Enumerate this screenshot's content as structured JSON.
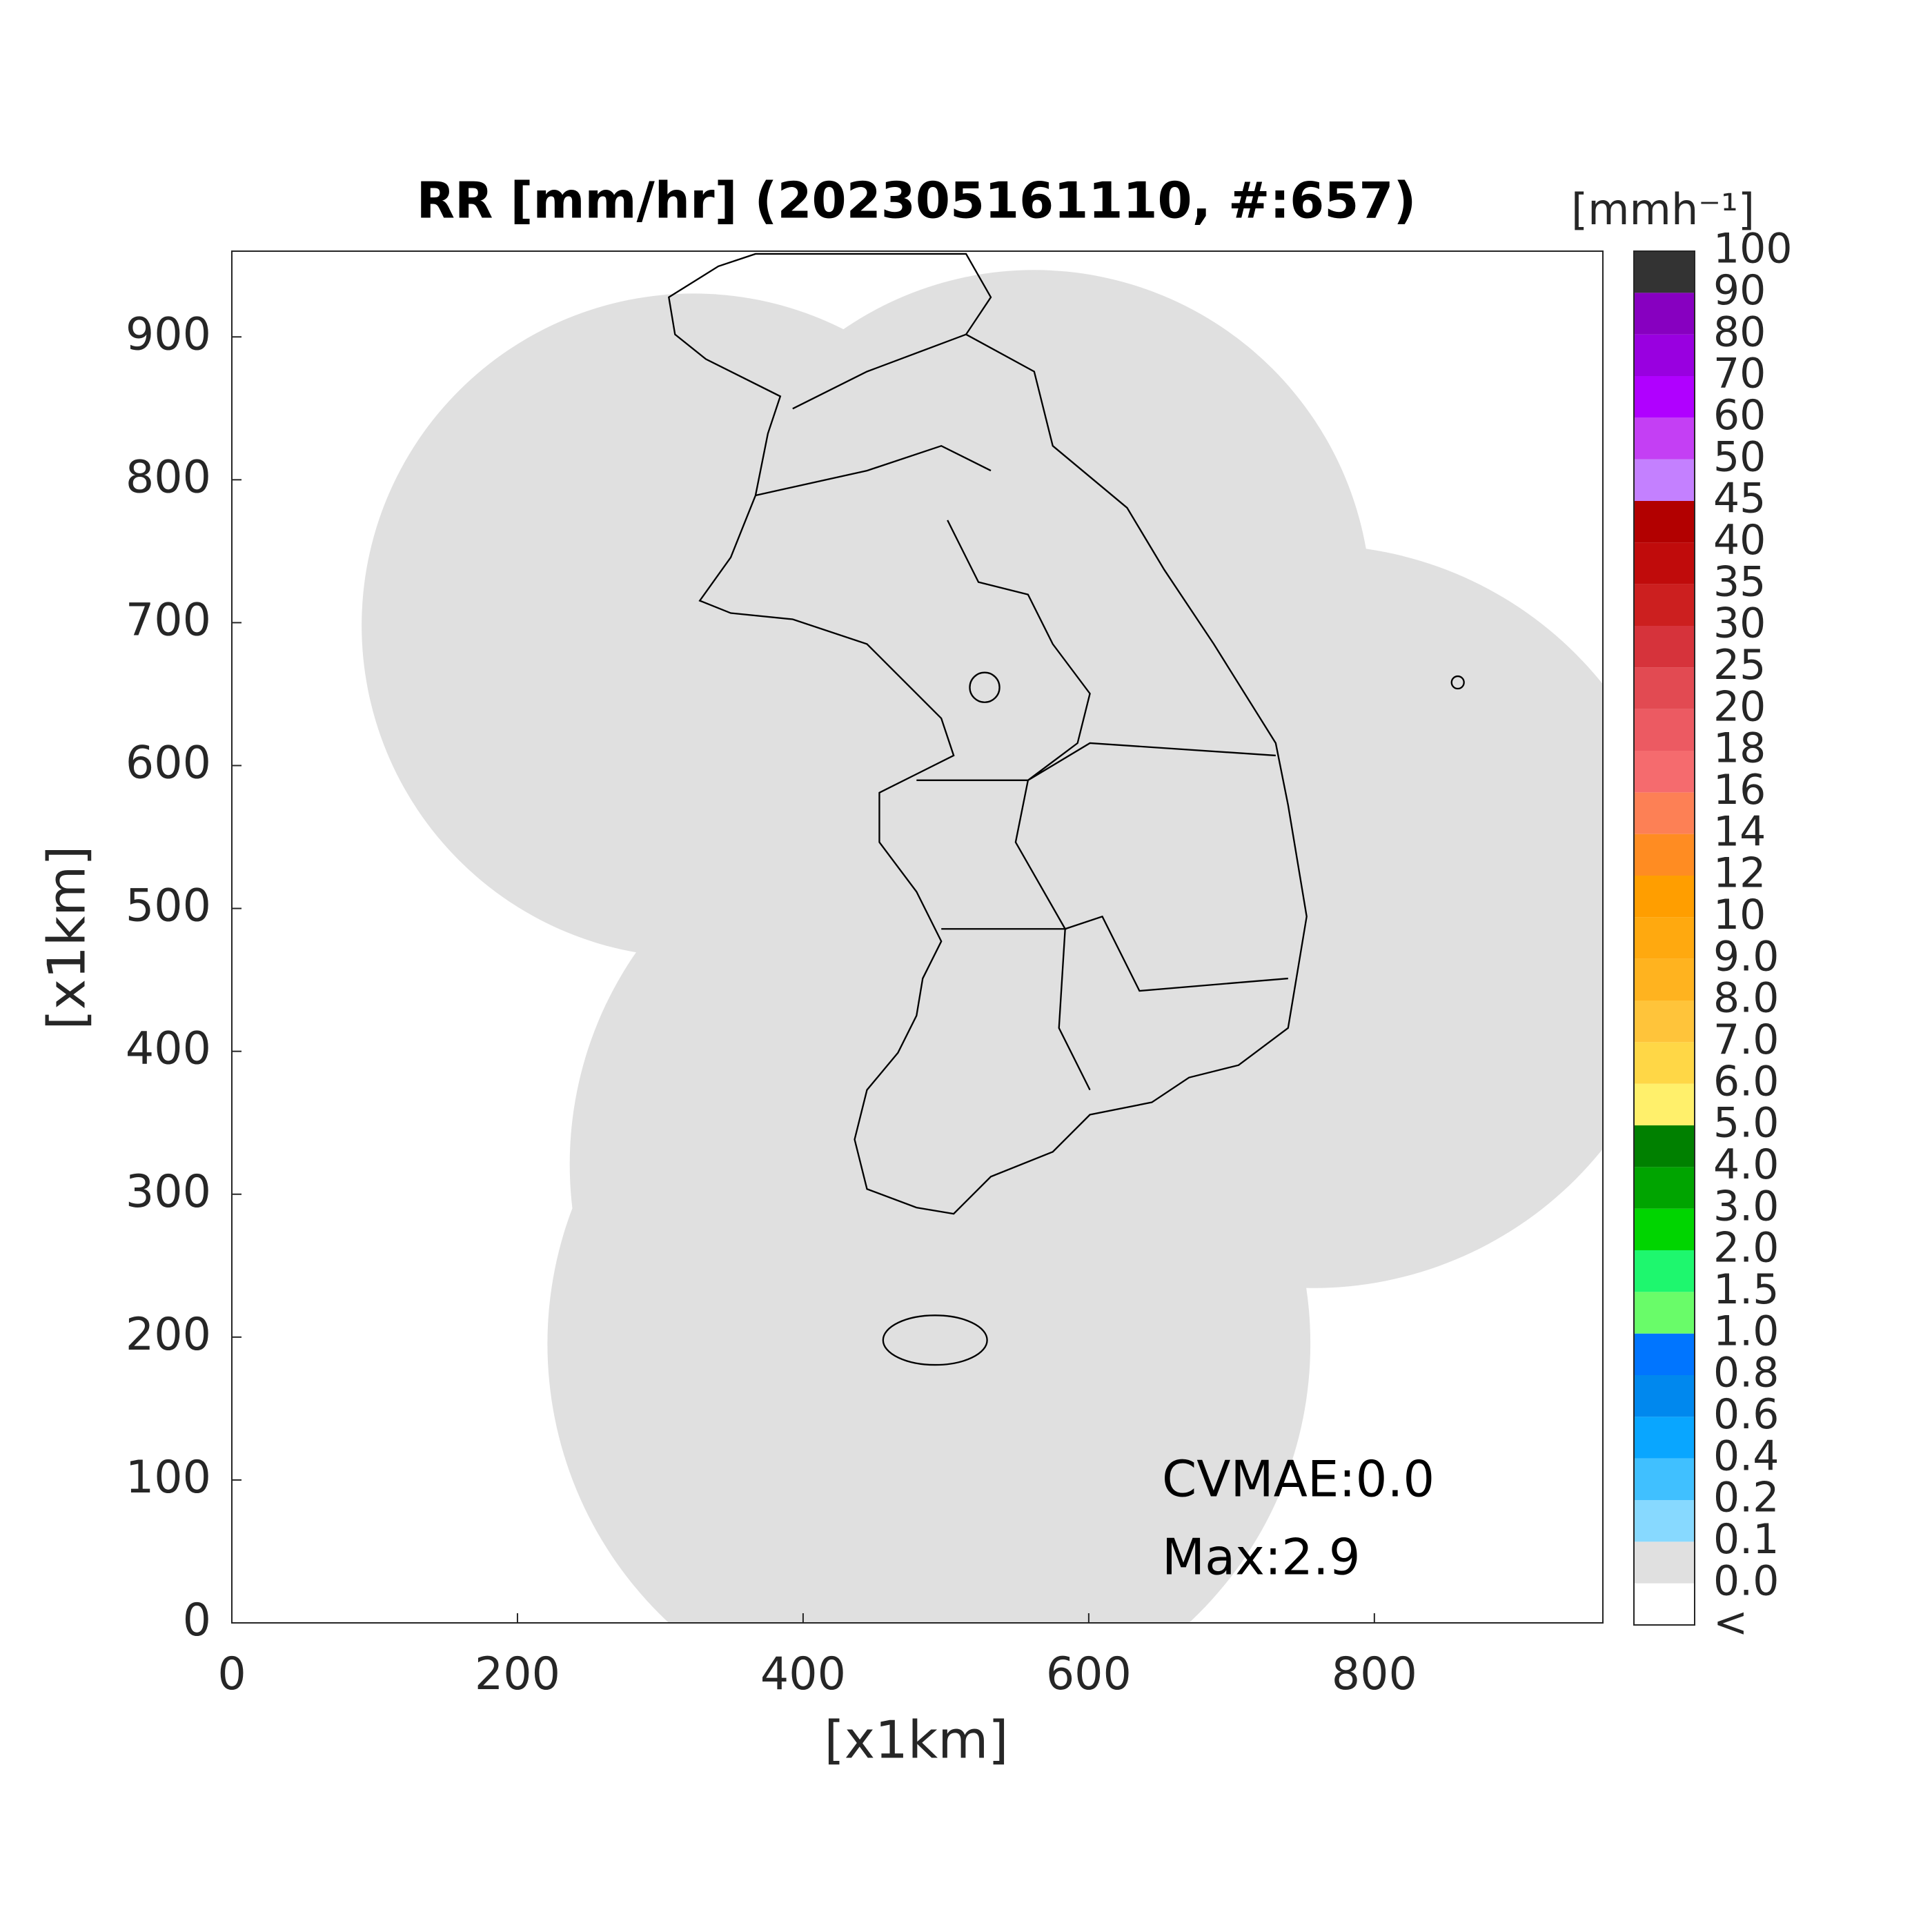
{
  "chart_data": {
    "type": "radar-map",
    "title": "RR [mm/hr] (202305161110, #:657)",
    "xlabel": "[x1km]",
    "ylabel": "[x1km]",
    "xlim": [
      0,
      960
    ],
    "ylim": [
      0,
      960
    ],
    "xticks": [
      0,
      200,
      400,
      600,
      800
    ],
    "yticks": [
      0,
      100,
      200,
      300,
      400,
      500,
      600,
      700,
      800,
      900
    ],
    "annotations": [
      "CVMAE:0.0",
      "Max:2.9"
    ],
    "colorbar": {
      "label": "[mmh⁻¹]",
      "levels": [
        "<",
        "0.0",
        "0.1",
        "0.2",
        "0.4",
        "0.6",
        "0.8",
        "1.0",
        "1.5",
        "2.0",
        "3.0",
        "4.0",
        "5.0",
        "6.0",
        "7.0",
        "8.0",
        "9.0",
        "10",
        "12",
        "14",
        "16",
        "18",
        "20",
        "25",
        "30",
        "35",
        "40",
        "45",
        "50",
        "60",
        "70",
        "80",
        "90",
        "100"
      ],
      "colors": [
        "#ffffff",
        "#e0e0e0",
        "#87d9ff",
        "#40c0ff",
        "#09a6ff",
        "#0088ee",
        "#0075ff",
        "#69fc69",
        "#1ef76e",
        "#00d500",
        "#00a400",
        "#008000",
        "#fff06b",
        "#ffd746",
        "#ffc43a",
        "#ffb31f",
        "#ffa90f",
        "#ff9e00",
        "#ff8c22",
        "#fd8055",
        "#f56b6e",
        "#ec5a62",
        "#e24a52",
        "#d6333b",
        "#cc1f1f",
        "#c00b0b",
        "#b20000",
        "#c480ff",
        "#c43ff4",
        "#b000ff",
        "#9900e0",
        "#8700c0",
        "#333333"
      ]
    }
  }
}
